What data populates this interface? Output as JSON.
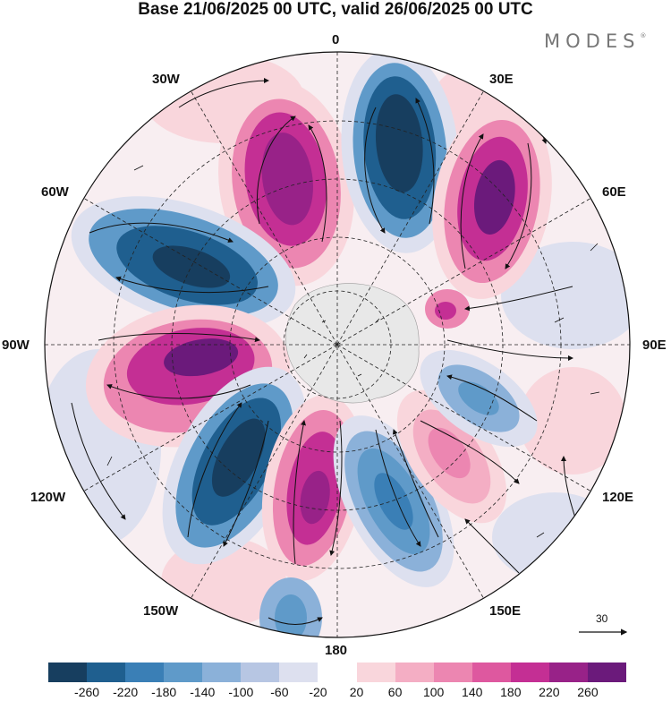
{
  "title": "Base 21/06/2025 00 UTC, valid 26/06/2025 00 UTC",
  "brand": {
    "name": "MODES",
    "mark": "®"
  },
  "longitudes": {
    "lon_0": "0",
    "lon_30e": "30E",
    "lon_60e": "60E",
    "lon_90e": "90E",
    "lon_120e": "120E",
    "lon_150e": "150E",
    "lon_180": "180",
    "lon_150w": "150W",
    "lon_120w": "120W",
    "lon_90w": "90W",
    "lon_60w": "60W",
    "lon_30w": "30W"
  },
  "reference_vector": {
    "value": "30"
  },
  "colorbar": {
    "colors": [
      "#173e5f",
      "#1f5f8f",
      "#3a7fb6",
      "#5f9ac9",
      "#8bb1d9",
      "#b7c6e3",
      "#dde0ef",
      "#ffffff",
      "#f9d6dc",
      "#f4aec4",
      "#ec86b1",
      "#de589f",
      "#c42f94",
      "#982288",
      "#6b1a7b"
    ],
    "labels": [
      "-260",
      "-220",
      "-180",
      "-140",
      "-100",
      "-60",
      "-20",
      "20",
      "60",
      "100",
      "140",
      "180",
      "220",
      "260"
    ]
  },
  "palette": {
    "negative_strong": "#1f5f8f",
    "negative_weak": "#b7c6e3",
    "positive_weak": "#f4aec4",
    "positive_strong": "#982288",
    "land": "#e8e8e8",
    "grid": "#222222"
  }
}
